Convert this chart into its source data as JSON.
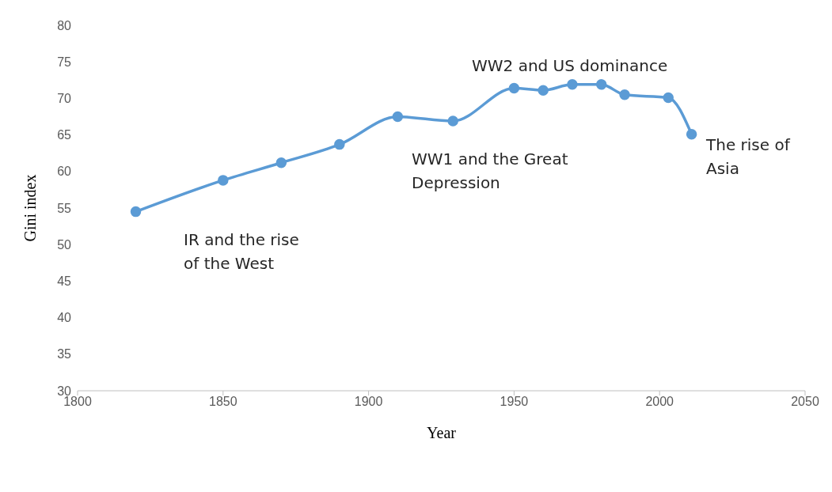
{
  "chart_data": {
    "type": "line",
    "xlabel": "Year",
    "ylabel": "Gini index",
    "x": [
      1820,
      1850,
      1870,
      1890,
      1910,
      1929,
      1950,
      1960,
      1970,
      1980,
      1988,
      2003,
      2011
    ],
    "series": [
      {
        "color": "#5b9bd5",
        "values": [
          54.5,
          58.8,
          61.2,
          63.7,
          67.5,
          66.9,
          71.4,
          71.1,
          71.9,
          71.9,
          70.5,
          70.1,
          65.1
        ]
      }
    ],
    "xlim": [
      1800,
      2050
    ],
    "xticks": [
      1800,
      1850,
      1900,
      1950,
      2000,
      2050
    ],
    "ylim": [
      30,
      80
    ],
    "yticks": [
      30,
      35,
      40,
      45,
      50,
      55,
      60,
      65,
      70,
      75,
      80
    ],
    "grid": false,
    "legend": false,
    "marker": "circle",
    "line_style": "solid",
    "annotations": [
      "IR and the rise of the West",
      "WW1 and the Great Depression",
      "WW2 and US dominance",
      "The rise of Asia"
    ]
  }
}
